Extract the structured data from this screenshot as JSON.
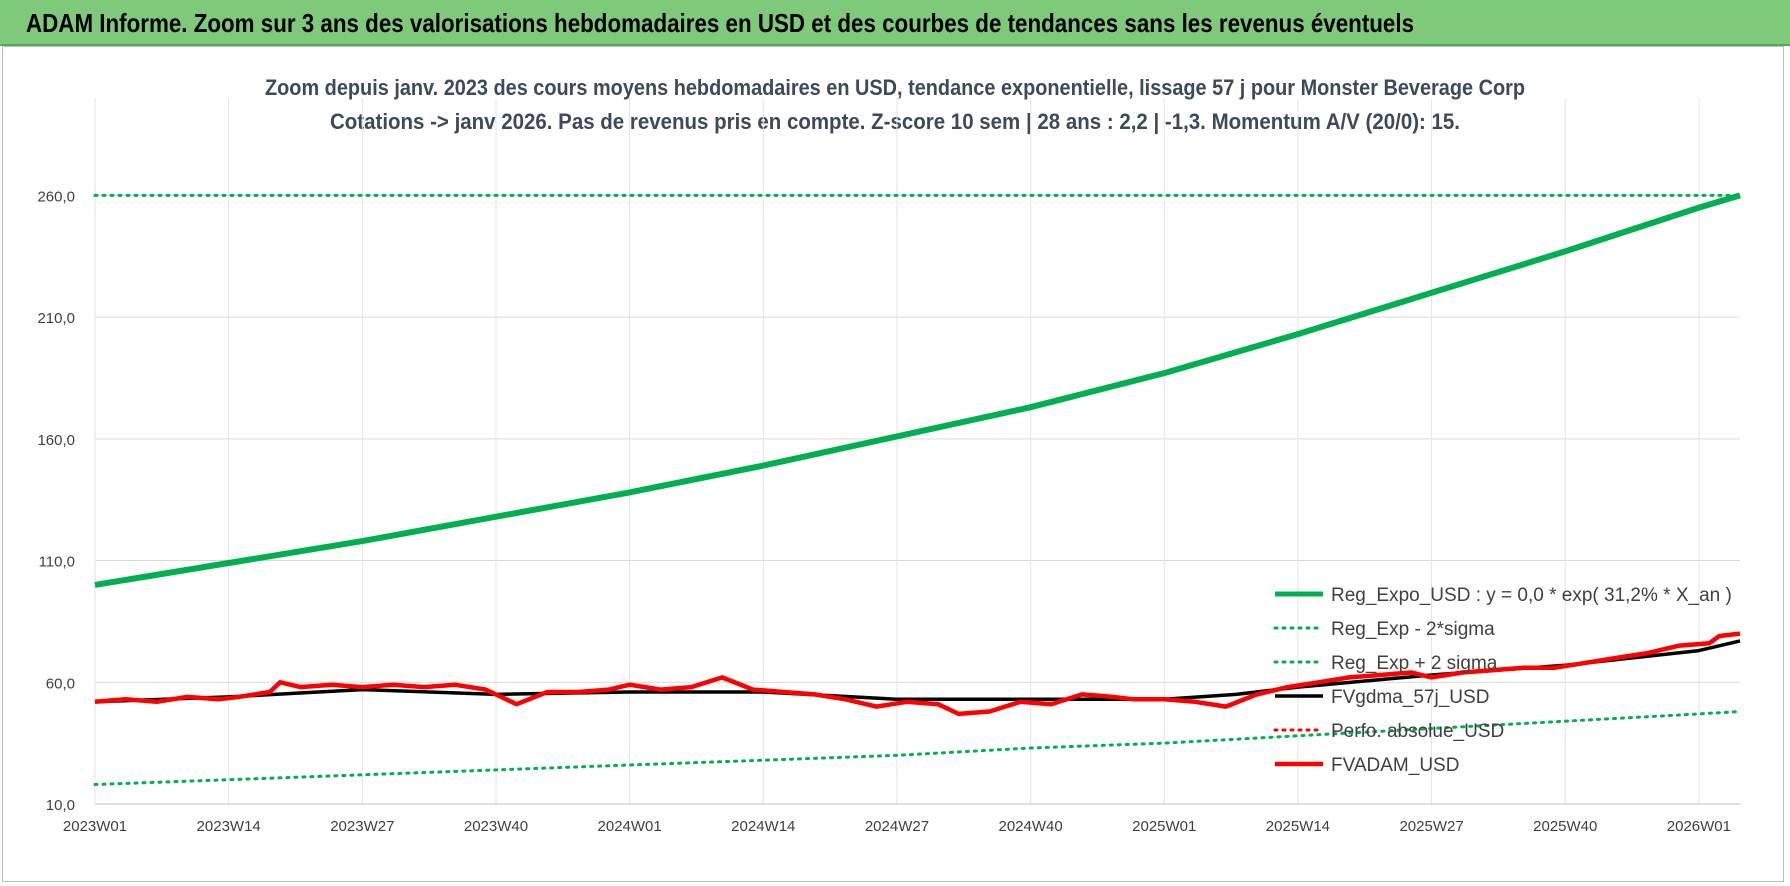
{
  "banner": {
    "title": "ADAM Informe. Zoom sur 3 ans des valorisations hebdomadaires en USD et des courbes de tendances sans les revenus éventuels"
  },
  "chart_data": {
    "type": "line",
    "title": "Zoom depuis janv. 2023 des cours moyens hebdomadaires en USD, tendance exponentielle, lissage 57 j pour Monster Beverage Corp",
    "subtitle": "Cotations -> janv 2026. Pas de revenus pris en compte. Z-score 10 sem | 28 ans : 2,2 | -1,3. Momentum A/V (20/0): 15.",
    "x_tick_labels": [
      "2023W01",
      "2023W14",
      "2023W27",
      "2023W40",
      "2024W01",
      "2024W14",
      "2024W27",
      "2024W40",
      "2025W01",
      "2025W14",
      "2025W27",
      "2025W40",
      "2026W01"
    ],
    "y_tick_labels": [
      "10,0",
      "60,0",
      "110,0",
      "160,0",
      "210,0",
      "260,0"
    ],
    "y_ticks": [
      10,
      60,
      110,
      160,
      210,
      260
    ],
    "ylim": [
      10,
      300
    ],
    "n_weeks": 161,
    "legend_position": "bottom-right",
    "series": [
      {
        "name": "Reg_Expo_USD : y = 0,0 * exp( 31,2% *  X_an )",
        "color": "#00b050",
        "style": "solid-thick",
        "x": [
          0,
          13,
          26,
          39,
          52,
          65,
          78,
          91,
          104,
          117,
          130,
          143,
          156,
          160
        ],
        "values": [
          100,
          109,
          118,
          128,
          138,
          149,
          161,
          173,
          187,
          203,
          220,
          237,
          255,
          260
        ]
      },
      {
        "name": "Reg_Exp - 2*sigma",
        "color": "#00b050",
        "style": "dotted",
        "x": [
          0,
          13,
          26,
          39,
          52,
          65,
          78,
          91,
          104,
          117,
          130,
          143,
          156,
          160
        ],
        "values": [
          18,
          20,
          22,
          24,
          26,
          28,
          30,
          33,
          35,
          38,
          41,
          44,
          47,
          48
        ]
      },
      {
        "name": "Reg_Exp + 2 sigma",
        "color": "#00b050",
        "style": "dotted",
        "x": [
          0,
          160
        ],
        "values": [
          260,
          260
        ]
      },
      {
        "name": "FVgdma_57j_USD",
        "color": "#000000",
        "style": "solid",
        "x": [
          0,
          13,
          26,
          39,
          52,
          65,
          78,
          91,
          104,
          111,
          117,
          130,
          143,
          156,
          160
        ],
        "values": [
          52,
          54,
          57,
          55,
          56,
          56,
          53,
          53,
          53,
          55,
          58,
          63,
          67,
          73,
          77
        ]
      },
      {
        "name": "Perfo. absolue_USD",
        "color": "#ff0000",
        "style": "dotted",
        "x": [],
        "values": []
      },
      {
        "name": "FVADAM_USD",
        "color": "#ff0000",
        "style": "solid",
        "x": [
          0,
          3,
          6,
          9,
          12,
          14,
          17,
          18,
          20,
          23,
          26,
          29,
          32,
          35,
          38,
          41,
          44,
          47,
          50,
          52,
          55,
          58,
          61,
          64,
          67,
          70,
          73,
          76,
          79,
          82,
          84,
          87,
          90,
          93,
          96,
          99,
          101,
          104,
          107,
          110,
          113,
          116,
          119,
          122,
          125,
          128,
          130,
          133,
          136,
          139,
          142,
          145,
          148,
          151,
          154,
          157,
          158,
          160
        ],
        "values": [
          52,
          53,
          52,
          54,
          53,
          54,
          56,
          60,
          58,
          59,
          58,
          59,
          58,
          59,
          57,
          51,
          56,
          56,
          57,
          59,
          57,
          58,
          62,
          57,
          56,
          55,
          53,
          50,
          52,
          51,
          47,
          48,
          52,
          51,
          55,
          54,
          53,
          53,
          52,
          50,
          55,
          58,
          60,
          62,
          63,
          64,
          62,
          64,
          65,
          66,
          66,
          68,
          70,
          72,
          75,
          76,
          79,
          80
        ]
      }
    ]
  }
}
